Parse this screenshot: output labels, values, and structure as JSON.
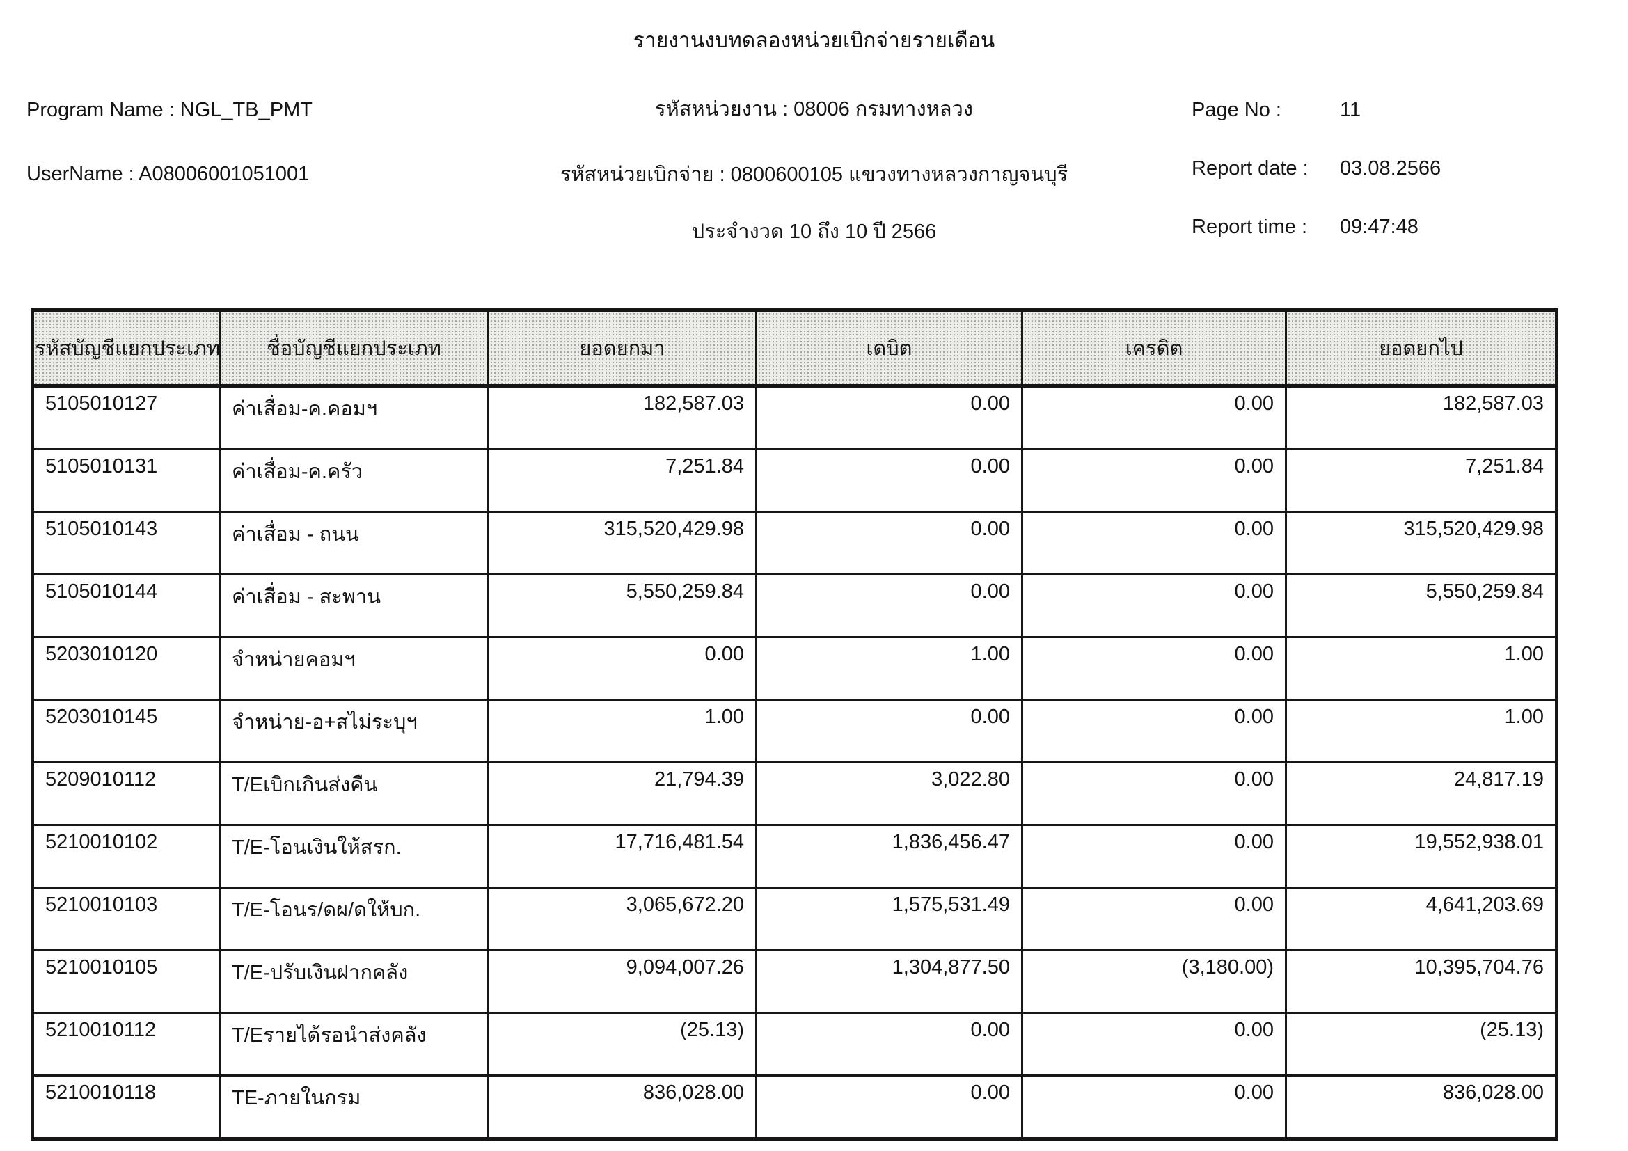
{
  "header": {
    "title": "รายงานงบทดลองหน่วยเบิกจ่ายรายเดือน",
    "program_name_label": "Program Name :",
    "program_name_value": "NGL_TB_PMT",
    "username_label": "UserName :",
    "username_value": "A08006001051001",
    "agency_line": "รหัสหน่วยงาน : 08006 กรมทางหลวง",
    "disbursing_unit_line": "รหัสหน่วยเบิกจ่าย : 0800600105 แขวงทางหลวงกาญจนบุรี",
    "period_line": "ประจำงวด 10 ถึง 10 ปี 2566",
    "page_no_label": "Page No :",
    "page_no_value": "11",
    "report_date_label": "Report date :",
    "report_date_value": "03.08.2566",
    "report_time_label": "Report time :",
    "report_time_value": "09:47:48"
  },
  "table": {
    "columns": [
      "รหัสบัญชีแยกประเภท",
      "ชื่อบัญชีแยกประเภท",
      "ยอดยกมา",
      "เดบิต",
      "เครดิต",
      "ยอดยกไป"
    ],
    "column_keys": [
      "account-code",
      "account-name",
      "balance-brought-forward",
      "debit",
      "credit",
      "balance-carried-forward"
    ],
    "rows": [
      [
        "5105010127",
        "ค่าเสื่อม-ค.คอมฯ",
        "182,587.03",
        "0.00",
        "0.00",
        "182,587.03"
      ],
      [
        "5105010131",
        "ค่าเสื่อม-ค.ครัว",
        "7,251.84",
        "0.00",
        "0.00",
        "7,251.84"
      ],
      [
        "5105010143",
        "ค่าเสื่อม - ถนน",
        "315,520,429.98",
        "0.00",
        "0.00",
        "315,520,429.98"
      ],
      [
        "5105010144",
        "ค่าเสื่อม - สะพาน",
        "5,550,259.84",
        "0.00",
        "0.00",
        "5,550,259.84"
      ],
      [
        "5203010120",
        "จำหน่ายคอมฯ",
        "0.00",
        "1.00",
        "0.00",
        "1.00"
      ],
      [
        "5203010145",
        "จำหน่าย-อ+สไม่ระบุฯ",
        "1.00",
        "0.00",
        "0.00",
        "1.00"
      ],
      [
        "5209010112",
        "T/Eเบิกเกินส่งคืน",
        "21,794.39",
        "3,022.80",
        "0.00",
        "24,817.19"
      ],
      [
        "5210010102",
        "T/E-โอนเงินให้สรก.",
        "17,716,481.54",
        "1,836,456.47",
        "0.00",
        "19,552,938.01"
      ],
      [
        "5210010103",
        "T/E-โอนร/ดผ/ดให้บก.",
        "3,065,672.20",
        "1,575,531.49",
        "0.00",
        "4,641,203.69"
      ],
      [
        "5210010105",
        "T/E-ปรับเงินฝากคลัง",
        "9,094,007.26",
        "1,304,877.50",
        "(3,180.00)",
        "10,395,704.76"
      ],
      [
        "5210010112",
        "T/Eรายได้รอนำส่งคลัง",
        "(25.13)",
        "0.00",
        "0.00",
        "(25.13)"
      ],
      [
        "5210010118",
        "TE-ภายในกรม",
        "836,028.00",
        "0.00",
        "0.00",
        "836,028.00"
      ]
    ]
  }
}
